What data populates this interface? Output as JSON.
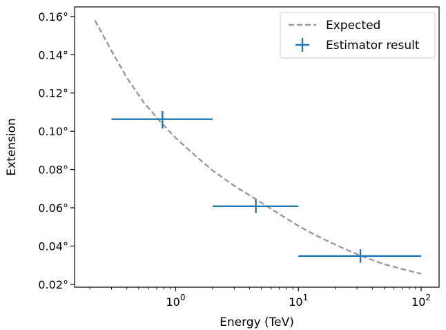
{
  "chart_data": {
    "type": "line",
    "title": "",
    "xlabel": "Energy (TeV)",
    "ylabel": "Extension",
    "xscale": "log",
    "xlim": [
      0.15,
      140
    ],
    "ylim": [
      0.0185,
      0.165
    ],
    "grid": false,
    "legend_position": "top-right",
    "x_ticks": [
      {
        "value": 1,
        "base": "10",
        "exp": "0"
      },
      {
        "value": 10,
        "base": "10",
        "exp": "1"
      },
      {
        "value": 100,
        "base": "10",
        "exp": "2"
      }
    ],
    "y_ticks": [
      {
        "value": 0.02,
        "label": "0.02°"
      },
      {
        "value": 0.04,
        "label": "0.04°"
      },
      {
        "value": 0.06,
        "label": "0.06°"
      },
      {
        "value": 0.08,
        "label": "0.08°"
      },
      {
        "value": 0.1,
        "label": "0.10°"
      },
      {
        "value": 0.12,
        "label": "0.12°"
      },
      {
        "value": 0.14,
        "label": "0.14°"
      },
      {
        "value": 0.16,
        "label": "0.16°"
      }
    ],
    "series": [
      {
        "name": "Expected",
        "style": "dashed",
        "color": "#999999",
        "x": [
          0.22,
          0.3,
          0.4,
          0.55,
          0.75,
          1.0,
          1.4,
          2.0,
          3.0,
          4.5,
          6.5,
          10,
          15,
          22,
          32,
          50,
          70,
          100
        ],
        "y": [
          0.158,
          0.142,
          0.128,
          0.115,
          0.105,
          0.0965,
          0.088,
          0.0795,
          0.0715,
          0.0645,
          0.058,
          0.0505,
          0.0445,
          0.0395,
          0.035,
          0.0305,
          0.028,
          0.0255
        ]
      },
      {
        "name": "Estimator result",
        "style": "errorbar",
        "color": "#1f77b4",
        "points": [
          {
            "x": 0.78,
            "y": 0.1063,
            "xmin": 0.3,
            "xmax": 2.0,
            "ymin": 0.1015,
            "ymax": 0.1105
          },
          {
            "x": 4.5,
            "y": 0.0608,
            "xmin": 2.0,
            "xmax": 10.0,
            "ymin": 0.0573,
            "ymax": 0.0643
          },
          {
            "x": 32,
            "y": 0.0348,
            "xmin": 10.0,
            "xmax": 100.0,
            "ymin": 0.0313,
            "ymax": 0.0383
          }
        ]
      }
    ]
  }
}
